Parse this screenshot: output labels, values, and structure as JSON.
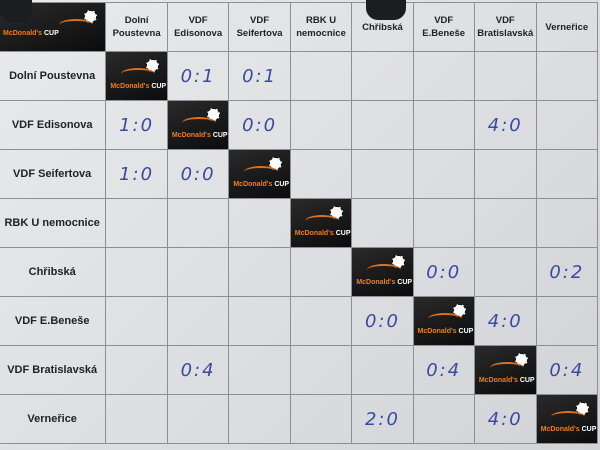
{
  "logo": {
    "text_main": "McDonald's",
    "text_cup": "CUP",
    "icon": "soccer-ball-icon",
    "colors": {
      "background": "#141414",
      "accent": "#ef7d1a"
    }
  },
  "teams": [
    {
      "row": "Dolní Poustevna",
      "col": "Dolní Poustevna"
    },
    {
      "row": "VDF Edisonova",
      "col": "VDF Edisonova"
    },
    {
      "row": "VDF Seifertova",
      "col": "VDF Seifertova"
    },
    {
      "row": "RBK U nemocnice",
      "col": "RBK U nemocnice"
    },
    {
      "row": "Chřibská",
      "col": "Chřibská"
    },
    {
      "row": "VDF E.Beneše",
      "col": "VDF E.Beneše"
    },
    {
      "row": "VDF Bratislavská",
      "col": "VDF Bratislavská"
    },
    {
      "row": "Verneřice",
      "col": "Verneřice"
    }
  ],
  "results": [
    [
      "",
      "0:1",
      "0:1",
      "",
      "",
      "",
      "",
      ""
    ],
    [
      "1:0",
      "",
      "0:0",
      "",
      "",
      "",
      "4:0",
      ""
    ],
    [
      "1:0",
      "0:0",
      "",
      "",
      "",
      "",
      "",
      ""
    ],
    [
      "",
      "",
      "",
      "",
      "",
      "",
      "",
      ""
    ],
    [
      "",
      "",
      "",
      "",
      "",
      "0:0",
      "",
      "0:2"
    ],
    [
      "",
      "",
      "",
      "",
      "0:0",
      "",
      "4:0",
      ""
    ],
    [
      "",
      "0:4",
      "",
      "",
      "",
      "0:4",
      "",
      "0:4"
    ],
    [
      "",
      "",
      "",
      "",
      "2:0",
      "",
      "4:0",
      ""
    ]
  ],
  "score_color": "#3a4aa0"
}
